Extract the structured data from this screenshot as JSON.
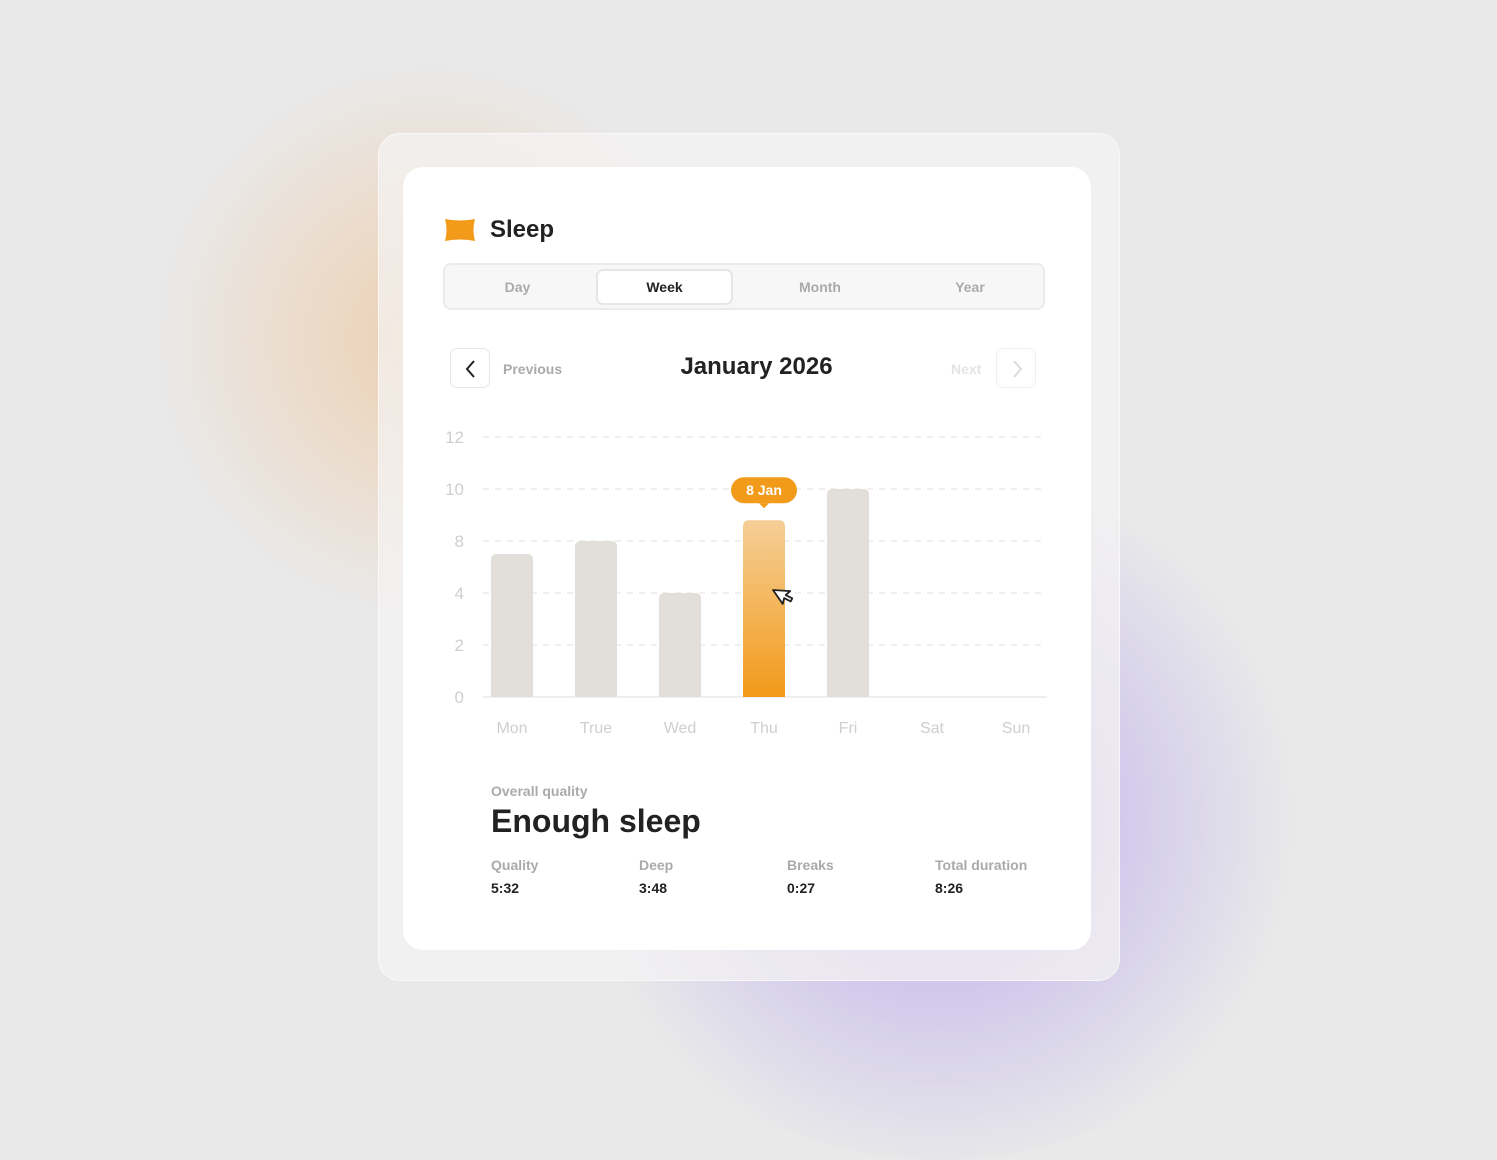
{
  "header": {
    "title": "Sleep",
    "icon": "pillow-icon",
    "accent": "#f29a1a"
  },
  "tabs": [
    {
      "label": "Day"
    },
    {
      "label": "Week",
      "active": true
    },
    {
      "label": "Month"
    },
    {
      "label": "Year"
    }
  ],
  "nav": {
    "previous": "Previous",
    "next": "Next",
    "period": "January 2026"
  },
  "chart_data": {
    "type": "bar",
    "categories": [
      "Mon",
      "True",
      "Wed",
      "Thu",
      "Fri",
      "Sat",
      "Sun"
    ],
    "values": [
      7,
      8,
      4,
      8.8,
      10,
      null,
      null
    ],
    "y_ticks": [
      0,
      2,
      4,
      8,
      10,
      12
    ],
    "ylim": [
      0,
      12
    ],
    "grid": true,
    "highlighted_index": 3,
    "tooltip": "8 Jan",
    "bar_color": "#e2dfda",
    "highlight_color": "#f29a1a"
  },
  "summary": {
    "label": "Overall quality",
    "value": "Enough sleep",
    "stats": [
      {
        "label": "Quality",
        "value": "5:32"
      },
      {
        "label": "Deep",
        "value": "3:48"
      },
      {
        "label": "Breaks",
        "value": "0:27"
      },
      {
        "label": "Total duration",
        "value": "8:26"
      }
    ]
  }
}
